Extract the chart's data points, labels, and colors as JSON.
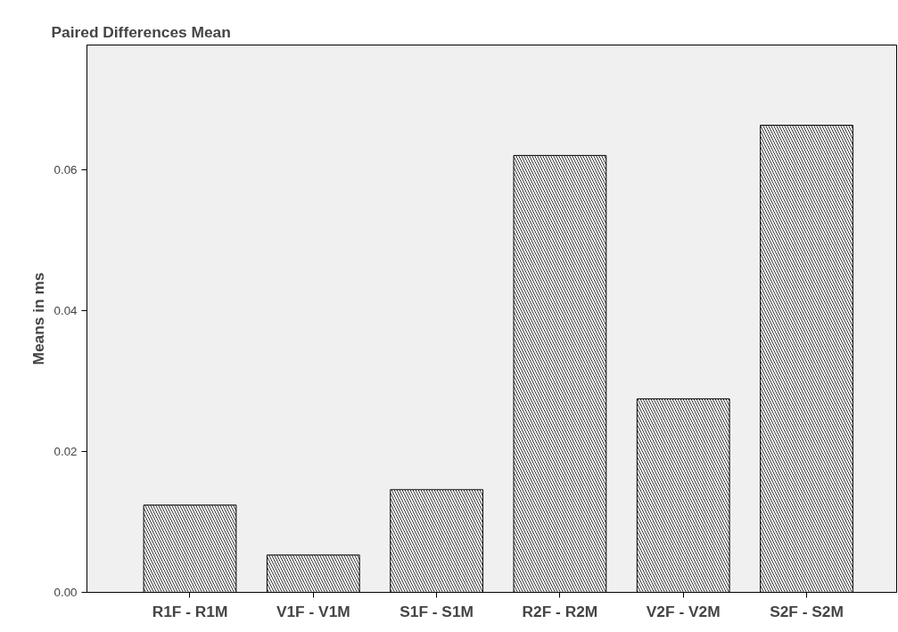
{
  "chart_data": {
    "type": "bar",
    "title": "Paired Differences Mean",
    "ylabel": "Means in ms",
    "categories": [
      "R1F - R1M",
      "V1F - V1M",
      "S1F - S1M",
      "R2F - R2M",
      "V2F - V2M",
      "S2F - S2M"
    ],
    "values": [
      0.0124,
      0.0053,
      0.0146,
      0.0621,
      0.0275,
      0.0664
    ],
    "color": "#ffffff",
    "ylim": [
      0,
      0.0778
    ],
    "yticks": [
      {
        "value": 0,
        "label": "0.00"
      },
      {
        "value": 0.02,
        "label": "0.02"
      },
      {
        "value": 0.04,
        "label": "0.04"
      },
      {
        "value": 0.06,
        "label": "0.06"
      }
    ],
    "grid": false
  }
}
